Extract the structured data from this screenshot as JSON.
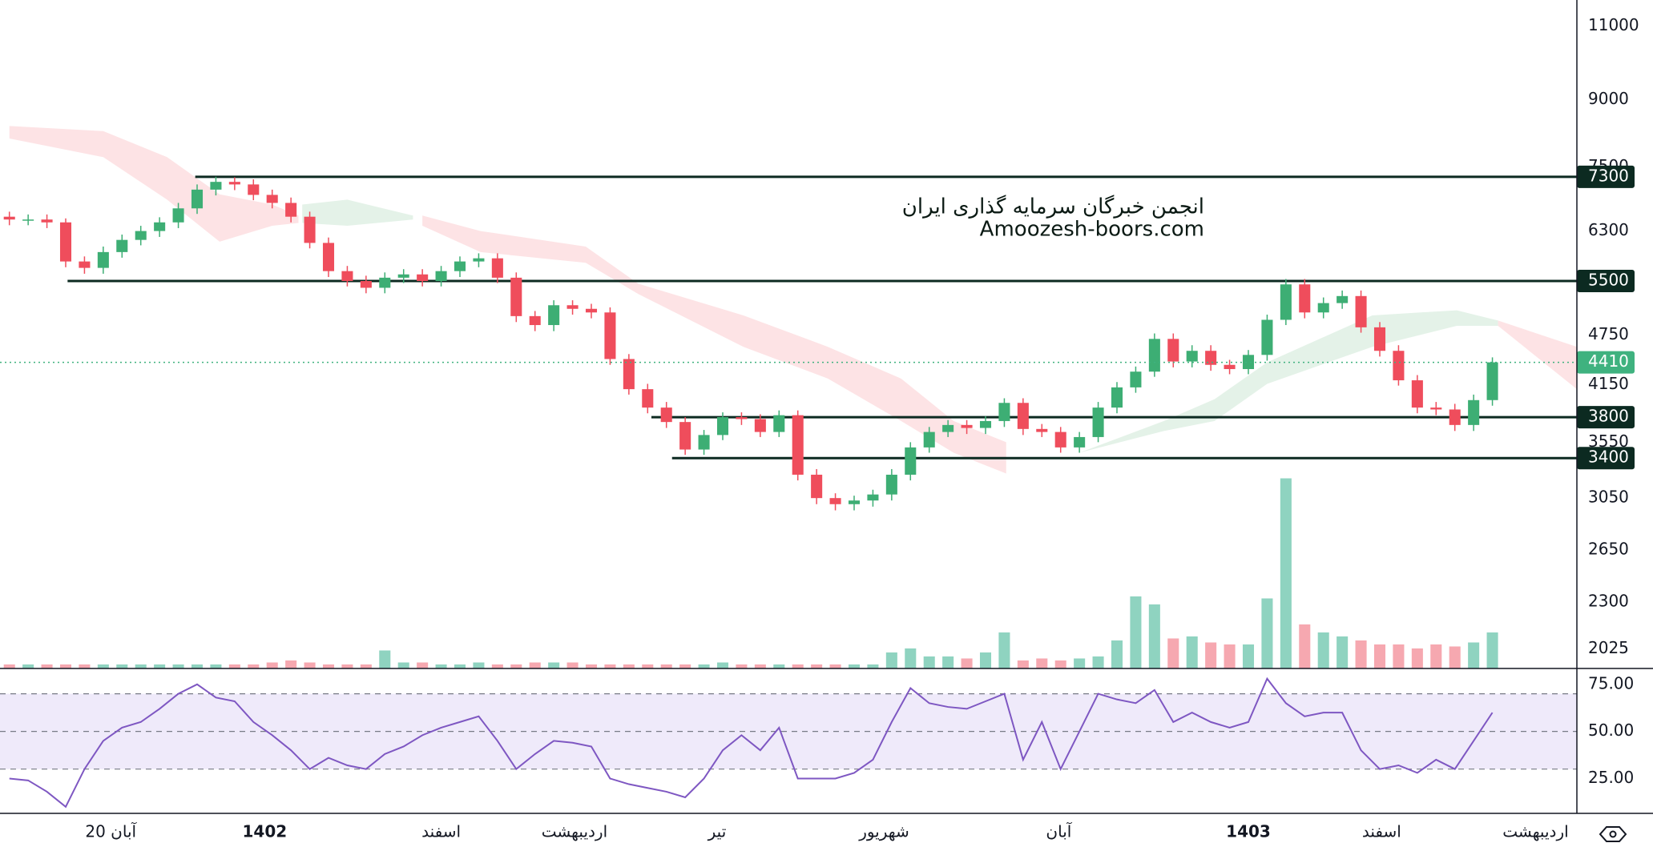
{
  "chart_data": {
    "type": "candlestick",
    "watermark": [
      "انجمن خبرگان سرمایه گذاری ایران",
      "Amoozesh-boors.com"
    ],
    "xlim": [
      -0.5,
      83.5
    ],
    "xticks": [
      {
        "value": 5.4,
        "label": "20 آبان"
      },
      {
        "value": 13.6,
        "label": "1402"
      },
      {
        "value": 23,
        "label": "اسفند"
      },
      {
        "value": 30.1,
        "label": "اردیبهشت"
      },
      {
        "value": 37.7,
        "label": "تیر"
      },
      {
        "value": 46.6,
        "label": "شهریور"
      },
      {
        "value": 55.9,
        "label": "آبان"
      },
      {
        "value": 66,
        "label": "1403"
      },
      {
        "value": 73.1,
        "label": "اسفند"
      },
      {
        "value": 81.3,
        "label": "اردیبهشت"
      }
    ],
    "ylim": [
      1920,
      11800
    ],
    "log_y": true,
    "yticks": [
      11000,
      9000,
      7500,
      6300,
      4750,
      4150,
      3550,
      3050,
      2650,
      2300,
      2025
    ],
    "up_color": "#3dae74",
    "down_color": "#ef4d5c",
    "open": [
      6550,
      6500,
      6500,
      6450,
      5800,
      5700,
      5950,
      6150,
      6300,
      6450,
      6700,
      7050,
      7200,
      7150,
      6950,
      6800,
      6550,
      6100,
      5650,
      5500,
      5400,
      5550,
      5600,
      5500,
      5650,
      5800,
      5850,
      5550,
      5000,
      4880,
      5150,
      5100,
      5050,
      4450,
      4100,
      3900,
      3750,
      3480,
      3620,
      3800,
      3780,
      3650,
      3820,
      3250,
      3050,
      3000,
      3030,
      3080,
      3250,
      3500,
      3650,
      3720,
      3690,
      3760,
      3950,
      3680,
      3650,
      3500,
      3600,
      3900,
      4120,
      4300,
      4700,
      4420,
      4550,
      4380,
      4330,
      4500,
      4950,
      5450,
      5050,
      5180,
      5280,
      4850,
      4550,
      4200,
      3900,
      3880,
      3720,
      3980
    ],
    "high": [
      6640,
      6590,
      6590,
      6520,
      5880,
      6040,
      6240,
      6390,
      6540,
      6800,
      7150,
      7300,
      7290,
      7250,
      7050,
      6900,
      6640,
      6190,
      5730,
      5580,
      5630,
      5680,
      5680,
      5730,
      5880,
      5930,
      5930,
      5630,
      5070,
      5220,
      5220,
      5170,
      5120,
      4510,
      4160,
      3960,
      3800,
      3670,
      3850,
      3850,
      3830,
      3870,
      3870,
      3300,
      3090,
      3070,
      3120,
      3300,
      3550,
      3700,
      3770,
      3770,
      3810,
      4000,
      4000,
      3730,
      3700,
      3650,
      3960,
      4180,
      4360,
      4770,
      4770,
      4620,
      4620,
      4440,
      4560,
      5020,
      5530,
      5530,
      5260,
      5360,
      5360,
      4920,
      4620,
      4260,
      3960,
      3940,
      4040,
      4470
    ],
    "low": [
      6400,
      6400,
      6350,
      5710,
      5610,
      5610,
      5860,
      6060,
      6200,
      6350,
      6600,
      6940,
      7040,
      6850,
      6700,
      6450,
      6010,
      5560,
      5420,
      5320,
      5320,
      5470,
      5420,
      5420,
      5560,
      5710,
      5470,
      4920,
      4800,
      4800,
      5020,
      4970,
      4380,
      4040,
      3840,
      3690,
      3430,
      3430,
      3570,
      3720,
      3600,
      3600,
      3200,
      3000,
      2950,
      2950,
      2980,
      3030,
      3200,
      3450,
      3600,
      3630,
      3630,
      3700,
      3620,
      3600,
      3450,
      3450,
      3550,
      3840,
      4060,
      4240,
      4350,
      4350,
      4310,
      4270,
      4270,
      4430,
      4880,
      4970,
      4970,
      5100,
      4780,
      4480,
      4140,
      3840,
      3820,
      3660,
      3660,
      3920
    ],
    "close": [
      6500,
      6500,
      6450,
      5800,
      5700,
      5950,
      6150,
      6300,
      6450,
      6700,
      7050,
      7200,
      7150,
      6950,
      6800,
      6550,
      6100,
      5650,
      5500,
      5400,
      5550,
      5600,
      5500,
      5650,
      5800,
      5850,
      5550,
      5000,
      4880,
      5150,
      5100,
      5050,
      4450,
      4100,
      3900,
      3750,
      3480,
      3620,
      3800,
      3780,
      3650,
      3820,
      3250,
      3050,
      3000,
      3030,
      3080,
      3250,
      3500,
      3650,
      3720,
      3690,
      3760,
      3950,
      3680,
      3650,
      3500,
      3600,
      3900,
      4120,
      4300,
      4700,
      4420,
      4550,
      4380,
      4330,
      4500,
      4950,
      5450,
      5050,
      5180,
      5280,
      4850,
      4550,
      4200,
      3900,
      3880,
      3720,
      3980,
      4410
    ],
    "volume": {
      "values": [
        2,
        2,
        2,
        2,
        2,
        2,
        2,
        2,
        2,
        2,
        2,
        2,
        2,
        2,
        3,
        4,
        3,
        2,
        2,
        2,
        9,
        3,
        3,
        2,
        2,
        3,
        2,
        2,
        3,
        3,
        3,
        2,
        2,
        2,
        2,
        2,
        2,
        2,
        3,
        2,
        2,
        2,
        2,
        2,
        2,
        2,
        2,
        8,
        10,
        6,
        6,
        5,
        8,
        18,
        4,
        5,
        4,
        5,
        6,
        14,
        36,
        32,
        15,
        16,
        13,
        12,
        12,
        35,
        95,
        22,
        18,
        16,
        14,
        12,
        12,
        10,
        12,
        11,
        13,
        18
      ],
      "ylim": [
        0,
        100
      ],
      "up_color": "#8fd3c0",
      "down_color": "#f6a8b0"
    },
    "cloud": [
      {
        "color": "#fde3e5",
        "x": [
          0,
          5,
          8.4,
          11.2,
          14,
          15.4
        ],
        "upper": [
          8380,
          8265,
          7700,
          6960,
          6770,
          6570
        ],
        "lower": [
          8100,
          7700,
          6860,
          6120,
          6390,
          6440
        ]
      },
      {
        "color": "#e4f2e8",
        "x": [
          15.6,
          18,
          21.5
        ],
        "upper": [
          6770,
          6860,
          6570
        ],
        "lower": [
          6440,
          6390,
          6500
        ]
      },
      {
        "color": "#fde3e5",
        "x": [
          22,
          25.1,
          30.7,
          33.5,
          39.1,
          43.6,
          47.5,
          50.3,
          53.1
        ],
        "upper": [
          6570,
          6300,
          6040,
          5460,
          5010,
          4600,
          4220,
          3760,
          3550
        ],
        "lower": [
          6390,
          5950,
          5780,
          5310,
          4600,
          4220,
          3760,
          3450,
          3260
        ]
      },
      {
        "color": "#e4f2e8",
        "x": [
          57,
          61.5,
          64.2,
          67,
          72.6,
          77.1,
          79.3
        ],
        "upper": [
          3450,
          3760,
          3990,
          4410,
          5010,
          5080,
          4940
        ],
        "lower": [
          3450,
          3660,
          3760,
          4160,
          4600,
          4870,
          4870
        ]
      },
      {
        "color": "#fde3e5",
        "x": [
          79.3,
          83.5
        ],
        "upper": [
          4940,
          4600
        ],
        "lower": [
          4870,
          4100
        ]
      }
    ],
    "levels": [
      {
        "value": 7300,
        "from": 9.9
      },
      {
        "value": 5500,
        "from": 3.1
      },
      {
        "value": 3800,
        "from": 34.2
      },
      {
        "value": 3400,
        "from": 35.3
      }
    ],
    "level_color": "#0c2a21",
    "last_color": "#3fb27f",
    "rsi": {
      "type": "line",
      "color": "#7e57c2",
      "band_color": "#efeafa",
      "values": [
        25,
        24,
        18,
        10,
        30,
        45,
        52,
        55,
        62,
        70,
        75,
        68,
        66,
        55,
        48,
        40,
        30,
        36,
        32,
        30,
        38,
        42,
        48,
        52,
        55,
        58,
        45,
        30,
        38,
        45,
        44,
        42,
        25,
        22,
        20,
        18,
        15,
        25,
        40,
        48,
        40,
        52,
        25,
        25,
        25,
        28,
        35,
        55,
        73,
        65,
        63,
        62,
        66,
        70,
        35,
        55,
        30,
        50,
        70,
        67,
        65,
        72,
        55,
        60,
        55,
        52,
        55,
        78,
        65,
        58,
        60,
        60,
        40,
        30,
        32,
        28,
        35,
        30,
        45,
        60
      ],
      "ylim": [
        6.5,
        83
      ],
      "yticks": [
        {
          "value": 75,
          "label": "75.00"
        },
        {
          "value": 50,
          "label": "50.00"
        },
        {
          "value": 25,
          "label": "25.00"
        }
      ],
      "guides": [
        30,
        50,
        70
      ]
    }
  }
}
